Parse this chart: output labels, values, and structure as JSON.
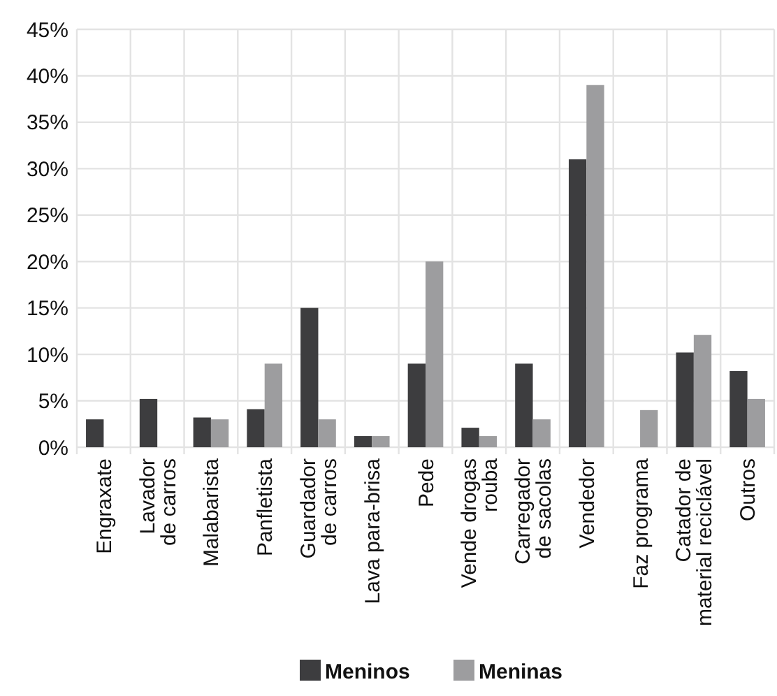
{
  "chart_data": {
    "type": "bar",
    "categories": [
      "Engraxate",
      "Lavador\nde carros",
      "Malabarista",
      "Panfletista",
      "Guardador\nde carros",
      "Lava para-brisa",
      "Pede",
      "Vende drogas\nrouba",
      "Carregador\nde sacolas",
      "Vendedor",
      "Faz programa",
      "Catador de\nmaterial reciclável",
      "Outros"
    ],
    "series": [
      {
        "name": "Meninos",
        "color": "#3d3d3f",
        "values": [
          3,
          5.2,
          3.2,
          4.1,
          15,
          1.2,
          9,
          2.1,
          9,
          31,
          null,
          10.2,
          8.2
        ]
      },
      {
        "name": "Meninas",
        "color": "#9d9d9f",
        "values": [
          null,
          null,
          3,
          9,
          3,
          1.2,
          20,
          1.2,
          3,
          39,
          4,
          12.1,
          5.2
        ]
      }
    ],
    "ylim": [
      0,
      45
    ],
    "yticks": [
      {
        "value": 0,
        "label": "0%"
      },
      {
        "value": 5,
        "label": "5%"
      },
      {
        "value": 10,
        "label": "10%"
      },
      {
        "value": 15,
        "label": "15%"
      },
      {
        "value": 20,
        "label": "20%"
      },
      {
        "value": 25,
        "label": "25%"
      },
      {
        "value": 30,
        "label": "30%"
      },
      {
        "value": 35,
        "label": "35%"
      },
      {
        "value": 40,
        "label": "40%"
      },
      {
        "value": 45,
        "label": "45%"
      }
    ],
    "grid": true,
    "legend": "bottom"
  }
}
